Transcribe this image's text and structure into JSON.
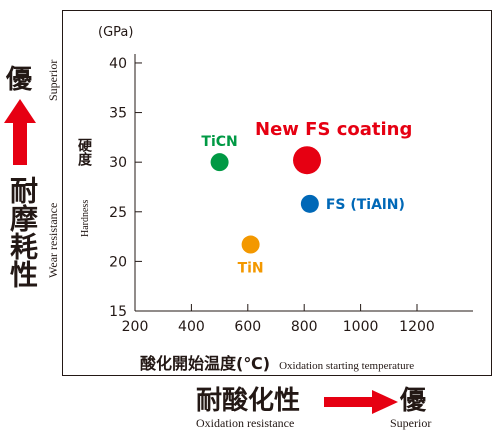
{
  "left_panel": {
    "superior_jp": "優",
    "superior_en": "Superior",
    "wear_jp": "耐摩耗性",
    "wear_en": "Wear resistance",
    "arrow_color": "#e60012"
  },
  "bottom_panel": {
    "oxidation_jp": "耐酸化性",
    "oxidation_en": "Oxidation resistance",
    "superior_jp": "優",
    "superior_en": "Superior",
    "arrow_color": "#e60012"
  },
  "chart_data": {
    "type": "scatter",
    "ylabel_unit": "(GPa)",
    "ylabel_jp": "硬度",
    "ylabel_en": "Hardness",
    "xlabel_jp": "酸化開始温度(℃)",
    "xlabel_en": "Oxidation starting temperature",
    "xlim": [
      200,
      1450
    ],
    "ylim": [
      15,
      42
    ],
    "x_ticks": [
      200,
      400,
      600,
      800,
      1000,
      1200
    ],
    "y_ticks": [
      15,
      20,
      25,
      30,
      35,
      40
    ],
    "grid": false,
    "points": [
      {
        "label": "TiCN",
        "x": 500,
        "y": 30,
        "color": "#009944",
        "label_pos": "above"
      },
      {
        "label": "TiN",
        "x": 610,
        "y": 21.7,
        "color": "#f39800",
        "label_pos": "below"
      },
      {
        "label": "New FS coating",
        "x": 810,
        "y": 30.2,
        "color": "#e60012",
        "label_pos": "above-right",
        "highlight": true
      },
      {
        "label": "FS (TiAlN)",
        "x": 820,
        "y": 25.8,
        "color": "#0068b7",
        "label_pos": "right"
      }
    ]
  }
}
